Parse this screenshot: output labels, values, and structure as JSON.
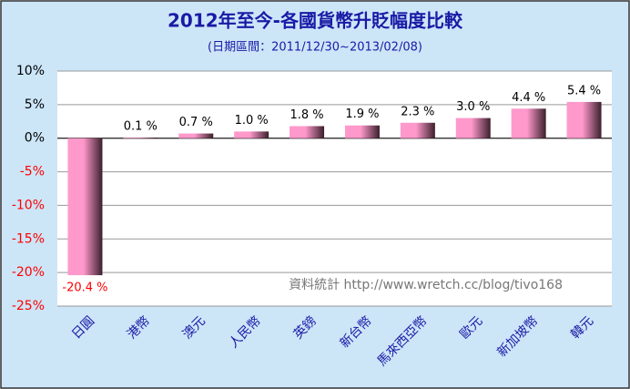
{
  "chart_data": {
    "type": "bar",
    "title": "2012年至今-各國貨幣升貶幅度比較",
    "subtitle": "(日期區間：2011/12/30~2013/02/08)",
    "annotation": "資料統計 http://www.wretch.cc/blog/tivo168",
    "categories": [
      "日圓",
      "港幣",
      "澳元",
      "人民幣",
      "英鎊",
      "新台幣",
      "馬來西亞幣",
      "歐元",
      "新加坡幣",
      "韓元"
    ],
    "values": [
      -20.4,
      0.1,
      0.7,
      1.0,
      1.8,
      1.9,
      2.3,
      3.0,
      4.4,
      5.4
    ],
    "value_labels": [
      "-20.4 %",
      "0.1 %",
      "0.7 %",
      "1.0 %",
      "1.8 %",
      "1.9 %",
      "2.3 %",
      "3.0 %",
      "4.4 %",
      "5.4 %"
    ],
    "color": "#ff99cc",
    "negative_color": "#ff0000",
    "ylim": [
      -25,
      10
    ],
    "yticks": [
      {
        "value": -25,
        "label": "-25%"
      },
      {
        "value": -20,
        "label": "-20%"
      },
      {
        "value": -15,
        "label": "-15%"
      },
      {
        "value": -10,
        "label": "-10%"
      },
      {
        "value": -5,
        "label": "-5%"
      },
      {
        "value": 0,
        "label": "0%"
      },
      {
        "value": 5,
        "label": "5%"
      },
      {
        "value": 10,
        "label": "10%"
      }
    ],
    "grid": true
  }
}
